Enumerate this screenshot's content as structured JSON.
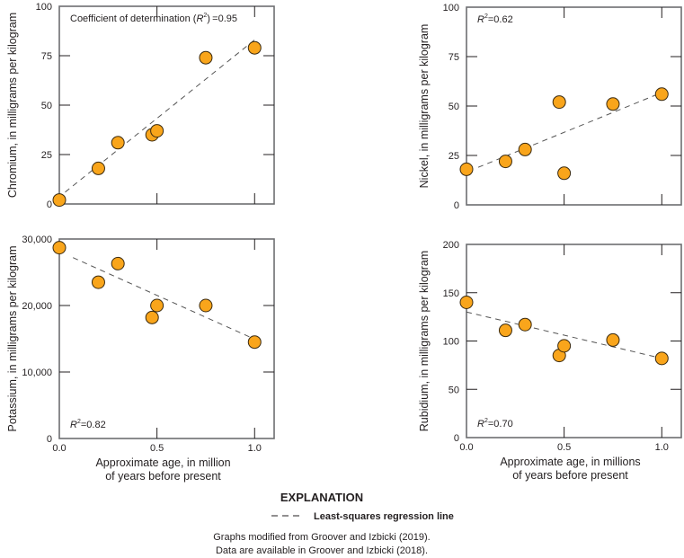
{
  "figure": {
    "legend": {
      "title": "EXPLANATION",
      "entries": [
        {
          "symbol": "dashed-line",
          "label": "Least-squares regression line"
        }
      ]
    },
    "notes": [
      "Graphs modified from Groover and Izbicki (2019).",
      "Data are available in Groover and Izbicki (2018)."
    ],
    "marker_color": "#F9A51B",
    "marker_edge_color": "#3a2a10",
    "line_color": "#555555"
  },
  "chart_data": [
    {
      "type": "scatter",
      "id": "chromium",
      "ylabel": "Chromium, in milligrams per kilogram",
      "xlabel": "",
      "xlim": [
        0,
        1.1
      ],
      "ylim": [
        0,
        100
      ],
      "yticks": [
        0,
        25,
        50,
        75,
        100
      ],
      "ytick_labels": [
        "0",
        "25",
        "50",
        "75",
        "100"
      ],
      "xticks": [
        0.0,
        0.5,
        1.0
      ],
      "xtick_labels": [],
      "annotation": {
        "prefix": "Coefficient of determination (",
        "r": "R",
        "sup": "2",
        "suffix": ") =0.95"
      },
      "r_squared": 0.95,
      "annotation_position": "top-left",
      "x": [
        0.0,
        0.2,
        0.3,
        0.475,
        0.5,
        0.75,
        1.0
      ],
      "y": [
        2,
        18,
        31,
        35,
        37,
        74,
        79
      ],
      "regression": {
        "x": [
          0.03,
          1.0
        ],
        "y": [
          6,
          83
        ]
      }
    },
    {
      "type": "scatter",
      "id": "nickel",
      "ylabel": "Nickel, in milligrams per kilogram",
      "xlabel": "",
      "xlim": [
        0,
        1.1
      ],
      "ylim": [
        0,
        100
      ],
      "yticks": [
        0,
        25,
        50,
        75,
        100
      ],
      "ytick_labels": [
        "0",
        "25",
        "50",
        "75",
        "100"
      ],
      "xticks": [
        0.0,
        0.5,
        1.0
      ],
      "xtick_labels": [],
      "annotation": {
        "prefix": "",
        "r": "R",
        "sup": "2",
        "suffix": "=0.62"
      },
      "r_squared": 0.62,
      "annotation_position": "top-left",
      "x": [
        0.0,
        0.2,
        0.3,
        0.475,
        0.5,
        0.75,
        1.0
      ],
      "y": [
        18,
        22,
        28,
        52,
        16,
        51,
        56
      ],
      "regression": {
        "x": [
          0.06,
          0.98
        ],
        "y": [
          19,
          56
        ]
      }
    },
    {
      "type": "scatter",
      "id": "potassium",
      "ylabel": "Potassium, in milligrams per kilogram",
      "xlabel": "Approximate age, in million of years before present",
      "xlabel_lines": [
        "Approximate age, in million",
        "of years before present"
      ],
      "xlim": [
        0,
        1.1
      ],
      "ylim": [
        0,
        30000
      ],
      "yticks": [
        0,
        10000,
        20000,
        30000
      ],
      "ytick_labels": [
        "0",
        "10,000",
        "20,000",
        "30,000"
      ],
      "xticks": [
        0.0,
        0.5,
        1.0
      ],
      "xtick_labels": [
        "0.0",
        "0.5",
        "1.0"
      ],
      "annotation": {
        "prefix": "",
        "r": "R",
        "sup": "2",
        "suffix": "=0.82"
      },
      "r_squared": 0.82,
      "annotation_position": "bottom-left",
      "x": [
        0.0,
        0.2,
        0.3,
        0.475,
        0.5,
        0.75,
        1.0
      ],
      "y": [
        28700,
        23500,
        26300,
        18200,
        20000,
        20000,
        14500
      ],
      "regression": {
        "x": [
          0.07,
          0.98
        ],
        "y": [
          27200,
          15200
        ]
      }
    },
    {
      "type": "scatter",
      "id": "rubidium",
      "ylabel": "Rubidium, in milligrams per kilogram",
      "xlabel": "Approximate age, in millions of years before present",
      "xlabel_lines": [
        "Approximate age, in millions",
        "of years before present"
      ],
      "xlim": [
        0,
        1.1
      ],
      "ylim": [
        0,
        200
      ],
      "yticks": [
        0,
        50,
        100,
        150,
        200
      ],
      "ytick_labels": [
        "0",
        "50",
        "100",
        "150",
        "200"
      ],
      "xticks": [
        0.0,
        0.5,
        1.0
      ],
      "xtick_labels": [
        "0.0",
        "0.5",
        "1.0"
      ],
      "annotation": {
        "prefix": "",
        "r": "R",
        "sup": "2",
        "suffix": "=0.70"
      },
      "r_squared": 0.7,
      "annotation_position": "bottom-left",
      "x": [
        0.0,
        0.2,
        0.3,
        0.475,
        0.5,
        0.75,
        1.0
      ],
      "y": [
        140,
        111,
        117,
        85,
        95,
        101,
        82
      ],
      "regression": {
        "x": [
          0.0,
          0.98
        ],
        "y": [
          130,
          83
        ]
      }
    }
  ]
}
